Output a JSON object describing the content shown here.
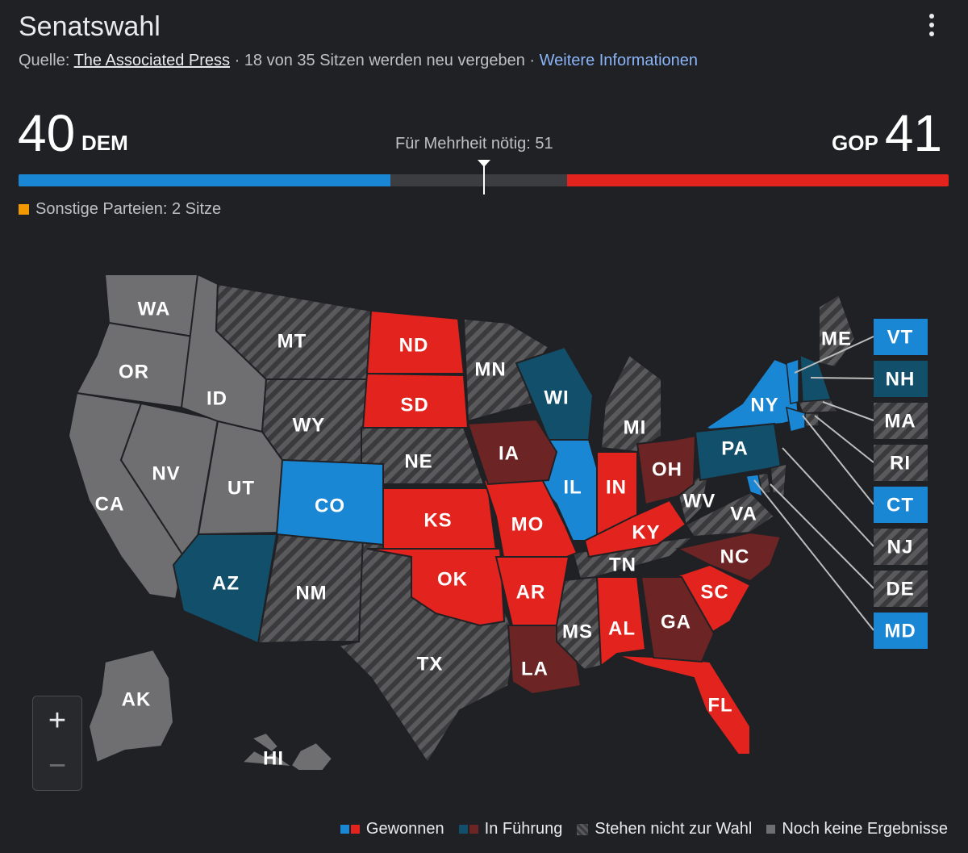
{
  "header": {
    "title": "Senatswahl",
    "source_prefix": "Quelle:",
    "source_name": "The Associated Press",
    "seats_text": "18 von 35 Sitzen werden neu vergeben",
    "more_info": "Weitere Informationen",
    "separator": "·"
  },
  "tally": {
    "dem_seats": "40",
    "dem_label": "DEM",
    "gop_seats": "41",
    "gop_label": "GOP",
    "majority_text": "Für Mehrheit nötig: 51",
    "total_seats": 100,
    "majority": 51,
    "others_text": "Sonstige Parteien: 2 Sitze"
  },
  "colors": {
    "dem_won": "#1a87d5",
    "gop_won": "#e3231e",
    "dem_leading": "#124f6b",
    "gop_leading": "#6c2424",
    "not_up": "#4a4a4c",
    "no_results": "#6f6f71",
    "others": "#f29900"
  },
  "states": [
    {
      "code": "WA",
      "status": "no_results"
    },
    {
      "code": "OR",
      "status": "no_results"
    },
    {
      "code": "CA",
      "status": "no_results"
    },
    {
      "code": "NV",
      "status": "no_results"
    },
    {
      "code": "ID",
      "status": "no_results"
    },
    {
      "code": "UT",
      "status": "no_results"
    },
    {
      "code": "AK",
      "status": "no_results"
    },
    {
      "code": "HI",
      "status": "no_results"
    },
    {
      "code": "MT",
      "status": "not_up"
    },
    {
      "code": "WY",
      "status": "not_up"
    },
    {
      "code": "NM",
      "status": "not_up"
    },
    {
      "code": "TX",
      "status": "not_up"
    },
    {
      "code": "NE",
      "status": "not_up"
    },
    {
      "code": "MN",
      "status": "not_up"
    },
    {
      "code": "MI",
      "status": "not_up"
    },
    {
      "code": "TN",
      "status": "not_up"
    },
    {
      "code": "MS",
      "status": "not_up"
    },
    {
      "code": "VA",
      "status": "not_up"
    },
    {
      "code": "WV",
      "status": "not_up"
    },
    {
      "code": "ME",
      "status": "not_up"
    },
    {
      "code": "CO",
      "status": "dem_won"
    },
    {
      "code": "IL",
      "status": "dem_won"
    },
    {
      "code": "NY",
      "status": "dem_won"
    },
    {
      "code": "AZ",
      "status": "dem_leading"
    },
    {
      "code": "WI",
      "status": "dem_leading"
    },
    {
      "code": "PA",
      "status": "dem_leading"
    },
    {
      "code": "ND",
      "status": "gop_won"
    },
    {
      "code": "SD",
      "status": "gop_won"
    },
    {
      "code": "KS",
      "status": "gop_won"
    },
    {
      "code": "OK",
      "status": "gop_won"
    },
    {
      "code": "MO",
      "status": "gop_won"
    },
    {
      "code": "AR",
      "status": "gop_won"
    },
    {
      "code": "IN",
      "status": "gop_won"
    },
    {
      "code": "KY",
      "status": "gop_won"
    },
    {
      "code": "AL",
      "status": "gop_won"
    },
    {
      "code": "SC",
      "status": "gop_won"
    },
    {
      "code": "FL",
      "status": "gop_won"
    },
    {
      "code": "IA",
      "status": "gop_leading"
    },
    {
      "code": "OH",
      "status": "gop_leading"
    },
    {
      "code": "NC",
      "status": "gop_leading"
    },
    {
      "code": "GA",
      "status": "gop_leading"
    },
    {
      "code": "LA",
      "status": "gop_leading"
    }
  ],
  "side_boxes": [
    {
      "code": "VT",
      "status": "dem_won"
    },
    {
      "code": "NH",
      "status": "dem_leading"
    },
    {
      "code": "MA",
      "status": "not_up"
    },
    {
      "code": "RI",
      "status": "not_up"
    },
    {
      "code": "CT",
      "status": "dem_won"
    },
    {
      "code": "NJ",
      "status": "not_up"
    },
    {
      "code": "DE",
      "status": "not_up"
    },
    {
      "code": "MD",
      "status": "dem_won"
    }
  ],
  "zoom": {
    "in": "+",
    "out": "−"
  },
  "legend": {
    "won": "Gewonnen",
    "leading": "In Führung",
    "not_up": "Stehen nicht zur Wahl",
    "no_results": "Noch keine Ergebnisse"
  }
}
